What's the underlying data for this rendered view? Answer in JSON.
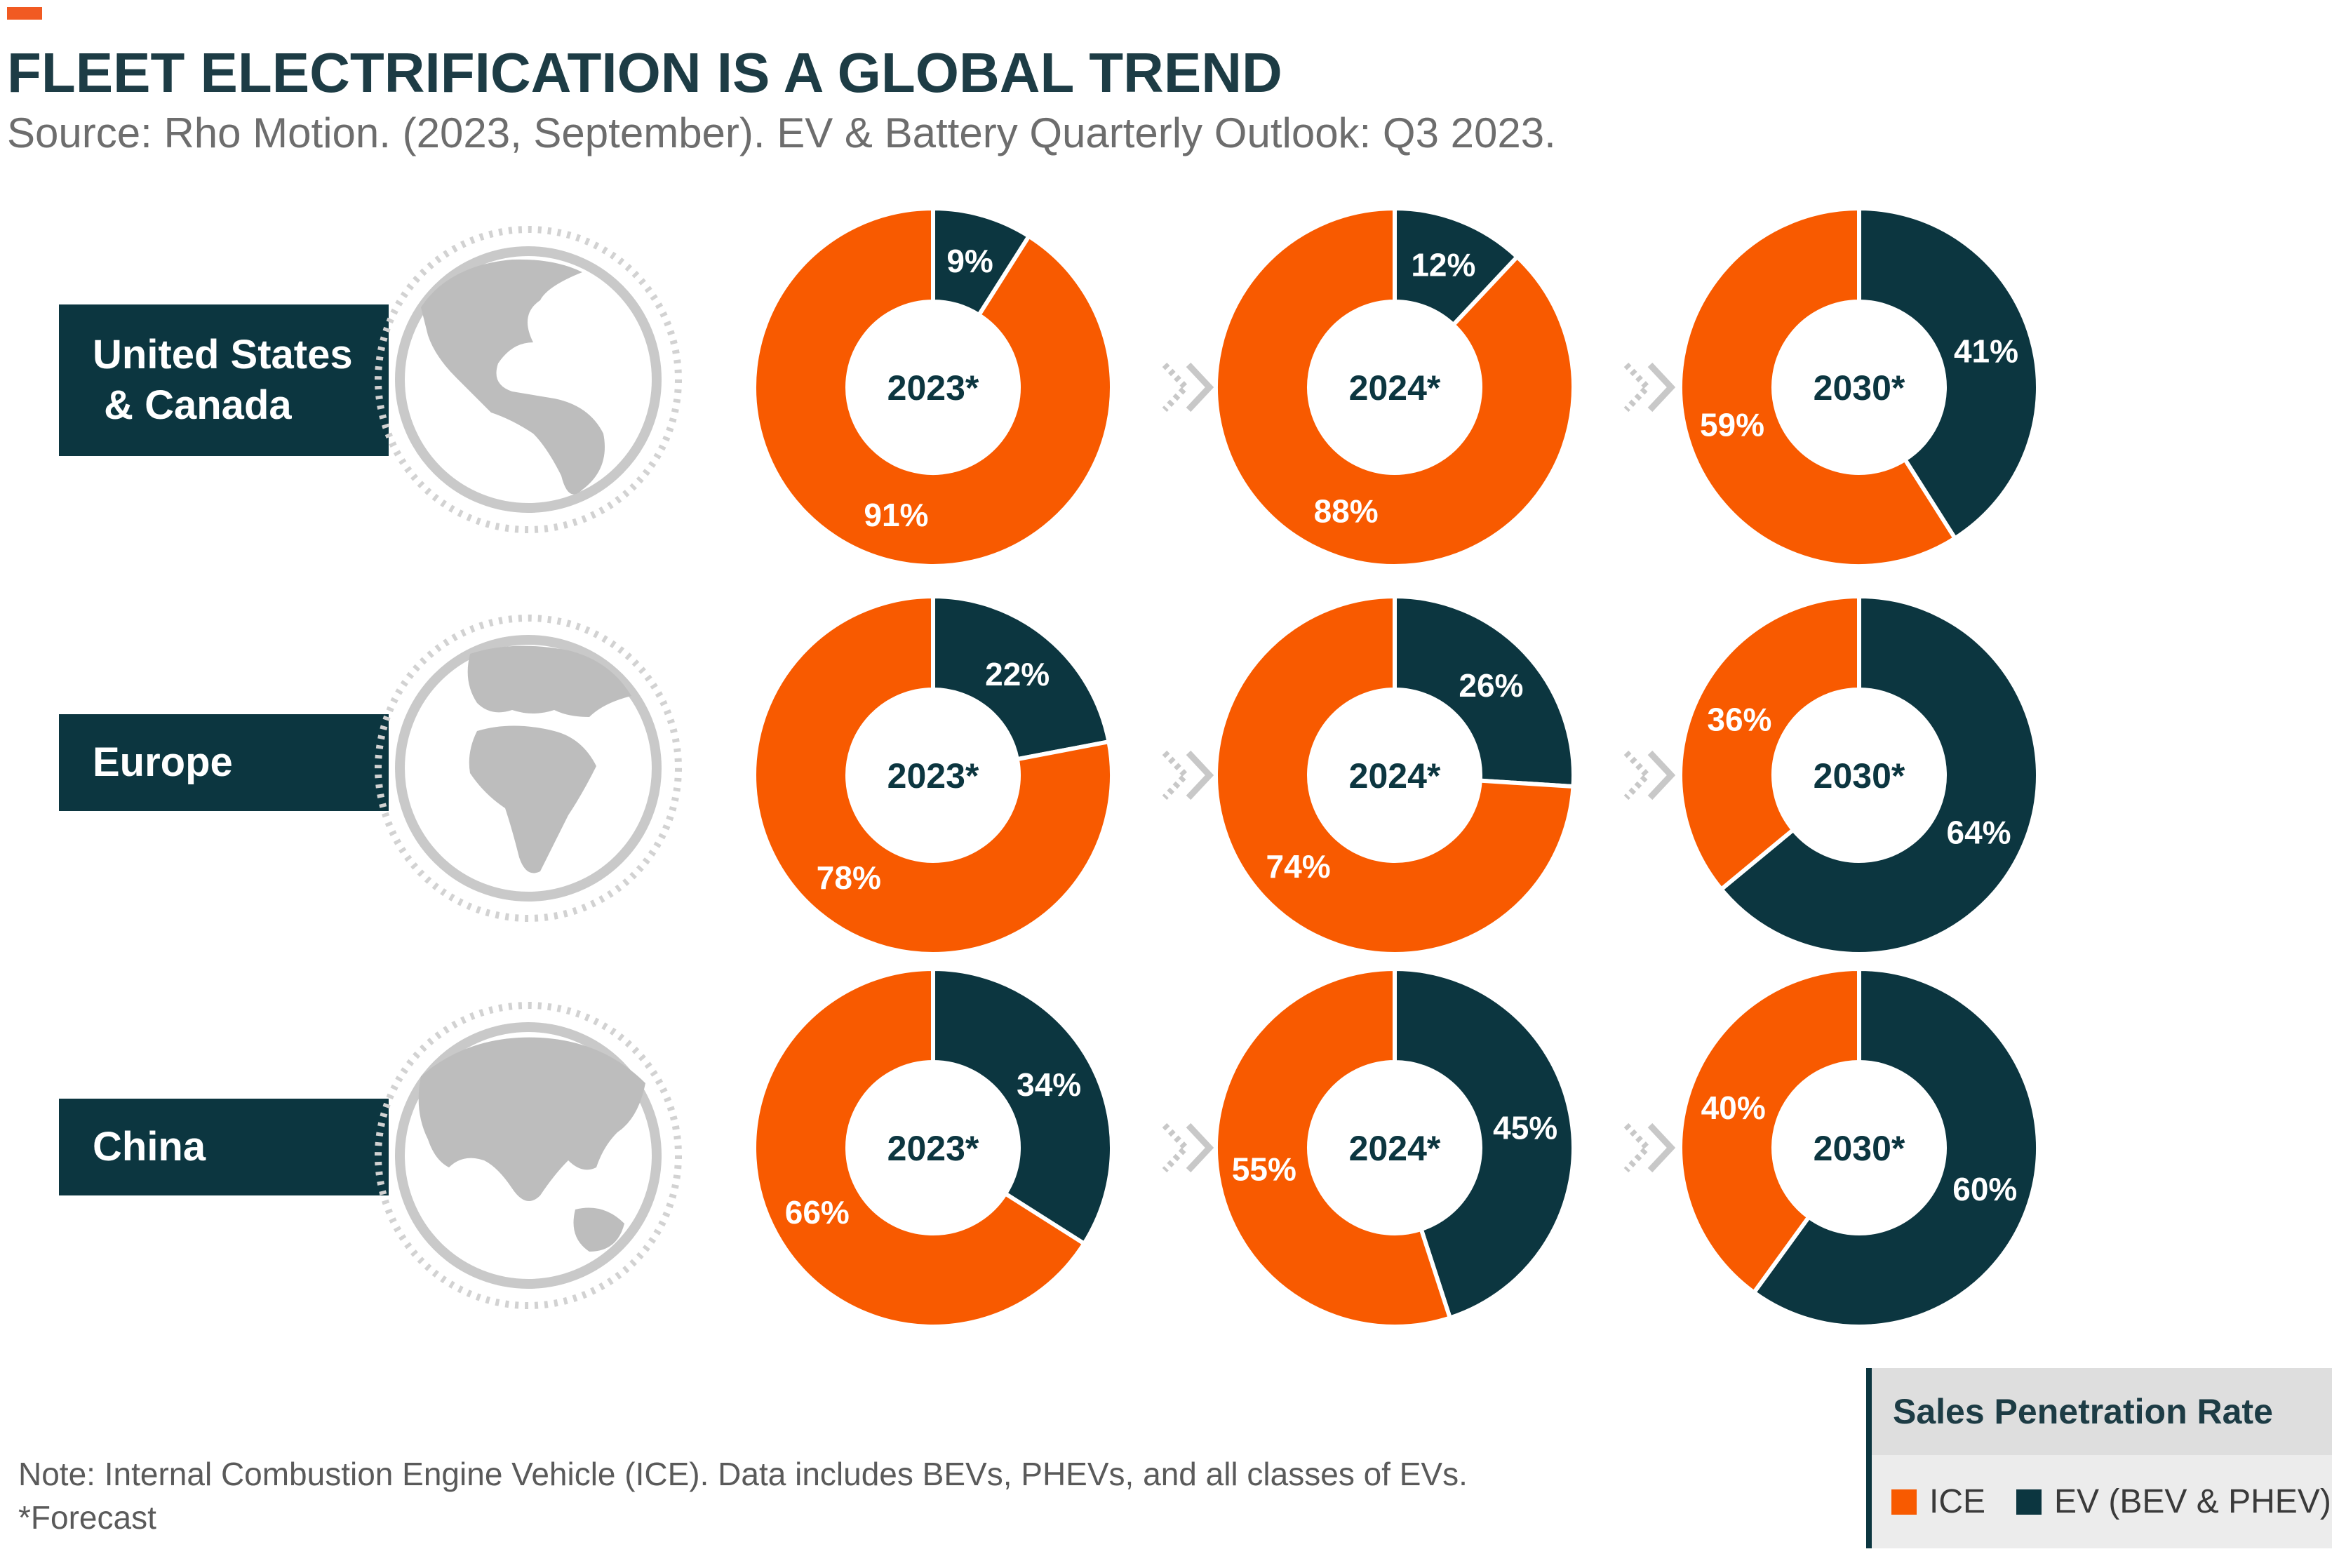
{
  "header": {
    "title": "FLEET ELECTRIFICATION IS A GLOBAL TREND",
    "subtitle": "Source: Rho Motion. (2023, September). EV & Battery Quarterly Outlook: Q3 2023."
  },
  "colors": {
    "ice": "#f85a00",
    "ev": "#0c3640",
    "accent": "#f15a22",
    "globe": "#c9c9c9"
  },
  "regions": [
    {
      "label": "United States\n & Canada",
      "icon": "globe-americas-icon"
    },
    {
      "label": "Europe",
      "icon": "globe-europe-africa-icon"
    },
    {
      "label": "China",
      "icon": "globe-asia-icon"
    }
  ],
  "chart_data": {
    "type": "pie",
    "variant": "donut",
    "series": [
      {
        "name": "ICE"
      },
      {
        "name": "EV (BEV & PHEV)"
      }
    ],
    "panels": [
      {
        "region": "United States & Canada",
        "year": "2023*",
        "ice": 91,
        "ev": 9,
        "ice_label": "91%",
        "ev_label": "9%"
      },
      {
        "region": "United States & Canada",
        "year": "2024*",
        "ice": 88,
        "ev": 12,
        "ice_label": "88%",
        "ev_label": "12%"
      },
      {
        "region": "United States & Canada",
        "year": "2030*",
        "ice": 59,
        "ev": 41,
        "ice_label": "59%",
        "ev_label": "41%"
      },
      {
        "region": "Europe",
        "year": "2023*",
        "ice": 78,
        "ev": 22,
        "ice_label": "78%",
        "ev_label": "22%"
      },
      {
        "region": "Europe",
        "year": "2024*",
        "ice": 74,
        "ev": 26,
        "ice_label": "74%",
        "ev_label": "26%"
      },
      {
        "region": "Europe",
        "year": "2030*",
        "ice": 36,
        "ev": 64,
        "ice_label": "36%",
        "ev_label": "64%"
      },
      {
        "region": "China",
        "year": "2023*",
        "ice": 66,
        "ev": 34,
        "ice_label": "66%",
        "ev_label": "34%"
      },
      {
        "region": "China",
        "year": "2024*",
        "ice": 55,
        "ev": 45,
        "ice_label": "55%",
        "ev_label": "45%"
      },
      {
        "region": "China",
        "year": "2030*",
        "ice": 40,
        "ev": 60,
        "ice_label": "40%",
        "ev_label": "60%"
      }
    ]
  },
  "legend": {
    "title": "Sales Penetration Rate",
    "items": [
      "ICE",
      "EV (BEV & PHEV)"
    ]
  },
  "footer": {
    "note": "Note: Internal Combustion Engine Vehicle (ICE). Data includes BEVs, PHEVs, and all classes of EVs.",
    "forecast": "*Forecast"
  }
}
